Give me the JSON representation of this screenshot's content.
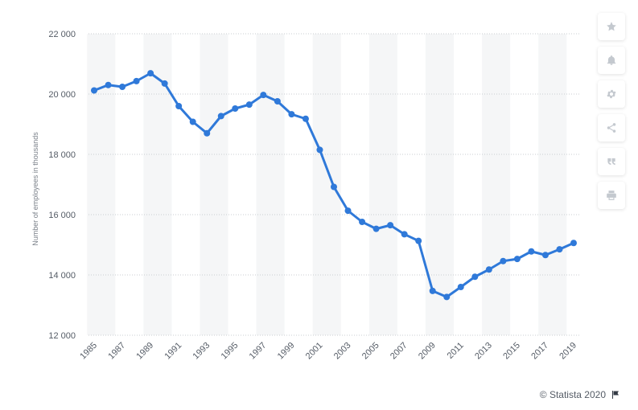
{
  "chart_data": {
    "type": "line",
    "ylabel": "Number of employees in thousands",
    "xlabel": "",
    "ylim": [
      12000,
      22000
    ],
    "yticks": [
      12000,
      14000,
      16000,
      18000,
      20000,
      22000
    ],
    "ytick_labels": [
      "12 000",
      "14 000",
      "16 000",
      "18 000",
      "20 000",
      "22 000"
    ],
    "x": [
      1985,
      1986,
      1987,
      1988,
      1989,
      1990,
      1991,
      1992,
      1993,
      1994,
      1995,
      1996,
      1997,
      1998,
      1999,
      2000,
      2001,
      2002,
      2003,
      2004,
      2005,
      2006,
      2007,
      2008,
      2009,
      2010,
      2011,
      2012,
      2013,
      2014,
      2015,
      2016,
      2017,
      2018,
      2019
    ],
    "xtick_labels": [
      "1985",
      "1987",
      "1989",
      "1991",
      "1993",
      "1995",
      "1997",
      "1999",
      "2001",
      "2003",
      "2005",
      "2007",
      "2009",
      "2011",
      "2013",
      "2015",
      "2017",
      "2019"
    ],
    "series": [
      {
        "values": [
          20120,
          20300,
          20240,
          20430,
          20690,
          20350,
          19600,
          19080,
          18700,
          19270,
          19520,
          19650,
          19970,
          19760,
          19330,
          19180,
          18150,
          16920,
          16130,
          15760,
          15530,
          15650,
          15350,
          15130,
          13470,
          13270,
          13600,
          13940,
          14180,
          14460,
          14530,
          14780,
          14660,
          14850,
          15060
        ]
      }
    ],
    "colors": {
      "line": "#2f79d9",
      "band": "#f5f6f7",
      "grid": "#c9cdd2"
    },
    "grid": true,
    "legend": "none"
  },
  "toolbar": {
    "icons": [
      "star-icon",
      "bell-icon",
      "gear-icon",
      "share-icon",
      "quote-icon",
      "print-icon"
    ]
  },
  "credit": {
    "text": "© Statista 2020",
    "icon": "flag-icon"
  }
}
